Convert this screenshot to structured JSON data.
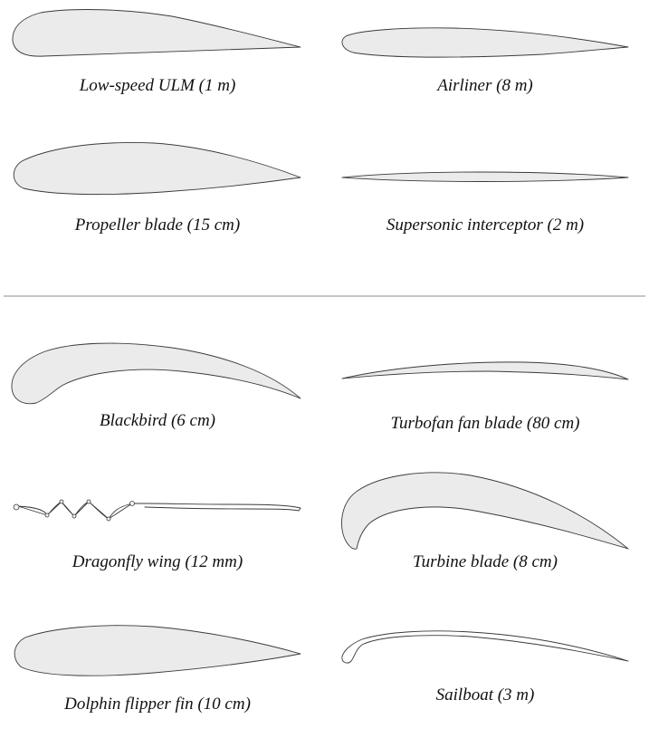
{
  "airfoils": {
    "low_speed_ulm": {
      "label": "Low-speed ULM (1 m)"
    },
    "airliner": {
      "label": "Airliner (8 m)"
    },
    "propeller_blade": {
      "label": "Propeller blade (15 cm)"
    },
    "supersonic_interceptor": {
      "label": "Supersonic interceptor (2 m)"
    },
    "blackbird": {
      "label": "Blackbird (6 cm)"
    },
    "turbofan_fan_blade": {
      "label": "Turbofan fan blade (80 cm)"
    },
    "dragonfly_wing": {
      "label": "Dragonfly wing (12 mm)"
    },
    "turbine_blade": {
      "label": "Turbine blade (8 cm)"
    },
    "dolphin_flipper_fin": {
      "label": "Dolphin flipper fin (10 cm)"
    },
    "sailboat": {
      "label": "Sailboat (3 m)"
    }
  },
  "colors": {
    "fill": "#ebebeb",
    "outline": "#3a3a3a",
    "divider": "#b3b3b3"
  }
}
